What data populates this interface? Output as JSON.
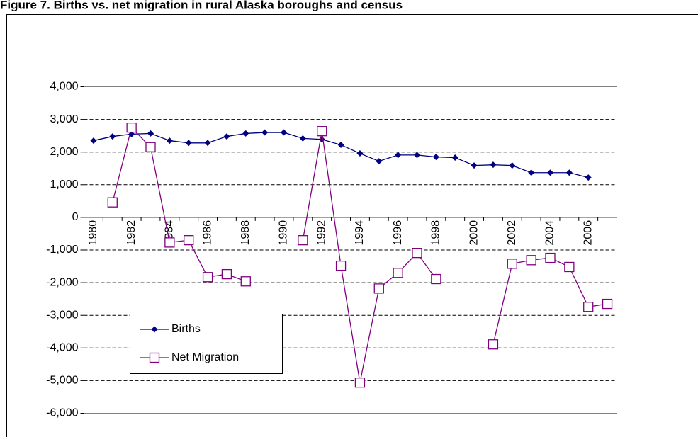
{
  "chart_data": {
    "type": "line",
    "title": "Figure 7. Births vs. net migration in rural Alaska boroughs and census",
    "categories": [
      "1980",
      null,
      "1982",
      null,
      "1984",
      null,
      "1986",
      null,
      "1988",
      null,
      "1990",
      null,
      "1992",
      null,
      "1994",
      null,
      "1996",
      null,
      "1998",
      null,
      "2000",
      null,
      "2002",
      null,
      "2004",
      null,
      "2006",
      null
    ],
    "series": [
      {
        "name": "Births",
        "color": "#000080",
        "marker": "diamond",
        "values": [
          2350,
          2480,
          2550,
          2570,
          2350,
          2280,
          2280,
          2480,
          2570,
          2600,
          2600,
          2420,
          2390,
          2220,
          1960,
          1720,
          1910,
          1910,
          1850,
          1830,
          1590,
          1610,
          1590,
          1370,
          1370,
          1370,
          1220,
          null
        ]
      },
      {
        "name": "Net Migration",
        "color": "#800080",
        "marker": "square",
        "values": [
          null,
          460,
          2750,
          2150,
          -770,
          -700,
          -1830,
          -1740,
          -1960,
          null,
          null,
          -700,
          2640,
          -1480,
          -5060,
          -2180,
          -1700,
          -1090,
          -1890,
          null,
          null,
          -3890,
          -1420,
          -1310,
          -1240,
          -1520,
          -2740,
          -2650
        ]
      }
    ],
    "ylim": [
      -6000,
      4000
    ],
    "yticks": [
      {
        "value": -6000,
        "label": "-6,000"
      },
      {
        "value": -5000,
        "label": "-5,000"
      },
      {
        "value": -4000,
        "label": "-4,000"
      },
      {
        "value": -3000,
        "label": "-3,000"
      },
      {
        "value": -2000,
        "label": "-2,000"
      },
      {
        "value": -1000,
        "label": "-1,000"
      },
      0,
      {
        "value": 1000,
        "label": "1,000"
      },
      {
        "value": 2000,
        "label": "2,000"
      },
      {
        "value": 3000,
        "label": "3,000"
      },
      {
        "value": 4000,
        "label": "4,000"
      }
    ],
    "grid": true
  }
}
